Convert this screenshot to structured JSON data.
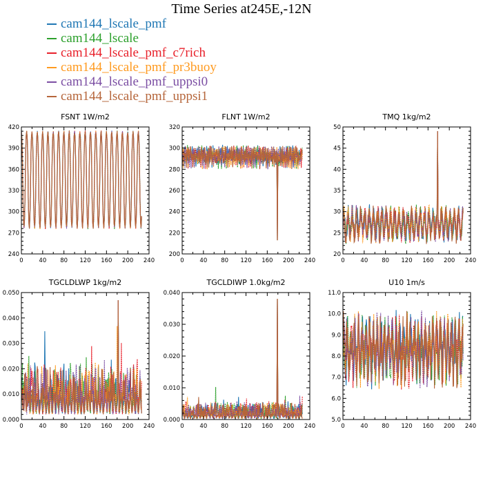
{
  "title": "Time Series at245E,-12N",
  "legend": [
    {
      "name": "cam144_lscale_pmf",
      "color": "#1f77b4"
    },
    {
      "name": "cam144_lscale",
      "color": "#2ca02c"
    },
    {
      "name": "cam144_lscale_pmf_c7rich",
      "color": "#e8202a"
    },
    {
      "name": "cam144_lscale_pmf_pr3buoy",
      "color": "#ff9a1f"
    },
    {
      "name": "cam144_lscale_pmf_uppsi0",
      "color": "#7b4ea3"
    },
    {
      "name": "cam144_lscale_pmf_uppsi1",
      "color": "#b5653a"
    }
  ],
  "chart_data": [
    {
      "type": "line",
      "title": "FSNT   1W/m2",
      "xlim": [
        0,
        240
      ],
      "ylim": [
        240,
        420
      ],
      "xticks": [
        "0",
        "40",
        "80",
        "120",
        "160",
        "200",
        "240"
      ],
      "xticks_minor": [
        20,
        60,
        100,
        140,
        180,
        220
      ],
      "yticks": [
        "240",
        "270",
        "300",
        "330",
        "360",
        "390",
        "420"
      ],
      "grid": false,
      "series_style": "diurnal",
      "approx_series": {
        "base": 345,
        "amp": 68,
        "period": 10,
        "noise": 4,
        "spike_at": null,
        "spike_val": null
      }
    },
    {
      "type": "line",
      "title": "FLNT   1W/m2",
      "xlim": [
        0,
        240
      ],
      "ylim": [
        200,
        320
      ],
      "xticks": [
        "0",
        "40",
        "80",
        "120",
        "160",
        "200",
        "240"
      ],
      "xticks_minor": [
        20,
        60,
        100,
        140,
        180,
        220
      ],
      "yticks": [
        "200",
        "220",
        "240",
        "260",
        "280",
        "300",
        "320"
      ],
      "grid": false,
      "series_style": "noisy",
      "approx_series": {
        "base": 292,
        "amp": 5,
        "period": 3,
        "noise": 7,
        "spike_at": 179,
        "spike_val": 213
      }
    },
    {
      "type": "line",
      "title": "TMQ   1kg/m2",
      "xlim": [
        0,
        240
      ],
      "ylim": [
        20,
        50
      ],
      "xticks": [
        "0",
        "40",
        "80",
        "120",
        "160",
        "200",
        "240"
      ],
      "xticks_minor": [
        20,
        60,
        100,
        140,
        180,
        220
      ],
      "yticks": [
        "20",
        "25",
        "30",
        "35",
        "40",
        "45",
        "50"
      ],
      "grid": false,
      "series_style": "noisy",
      "approx_series": {
        "base": 27,
        "amp": 2.5,
        "period": 8,
        "noise": 2.2,
        "spike_at": 178,
        "spike_val": 49
      }
    },
    {
      "type": "line",
      "title": "TGCLDLWP   1kg/m2",
      "xlim": [
        0,
        240
      ],
      "ylim": [
        0,
        0.05
      ],
      "xticks": [
        "0",
        "40",
        "80",
        "120",
        "160",
        "200",
        "240"
      ],
      "xticks_minor": [
        20,
        60,
        100,
        140,
        180,
        220
      ],
      "yticks": [
        "0.000",
        "0.010",
        "0.020",
        "0.030",
        "0.040",
        "0.050"
      ],
      "grid": false,
      "series_style": "spiky",
      "approx_series": {
        "base": 0.005,
        "amp": 0.003,
        "period": 6,
        "noise": 0.006,
        "spike_at": 182,
        "spike_val": 0.047
      }
    },
    {
      "type": "line",
      "title": "TGCLDIWP   1.0kg/m2",
      "xlim": [
        0,
        240
      ],
      "ylim": [
        0,
        0.04
      ],
      "xticks": [
        "0",
        "40",
        "80",
        "120",
        "160",
        "200",
        "240"
      ],
      "xticks_minor": [
        20,
        60,
        100,
        140,
        180,
        220
      ],
      "yticks": [
        "0.000",
        "0.010",
        "0.020",
        "0.030",
        "0.040"
      ],
      "grid": false,
      "series_style": "spiky_low",
      "approx_series": {
        "base": 0.0008,
        "amp": 0.0005,
        "period": 6,
        "noise": 0.0018,
        "spike_at": 179,
        "spike_val": 0.038
      }
    },
    {
      "type": "line",
      "title": "U10   1m/s",
      "xlim": [
        0,
        240
      ],
      "ylim": [
        5,
        11
      ],
      "xticks": [
        "0",
        "40",
        "80",
        "120",
        "160",
        "200",
        "240"
      ],
      "xticks_minor": [
        20,
        60,
        100,
        140,
        180,
        220
      ],
      "yticks": [
        "5.0",
        "6.0",
        "7.0",
        "8.0",
        "9.0",
        "10.0",
        "11.0"
      ],
      "grid": false,
      "series_style": "noisy",
      "approx_series": {
        "base": 8.3,
        "amp": 0.8,
        "period": 7,
        "noise": 1.1,
        "spike_at": null,
        "spike_val": null
      }
    }
  ]
}
